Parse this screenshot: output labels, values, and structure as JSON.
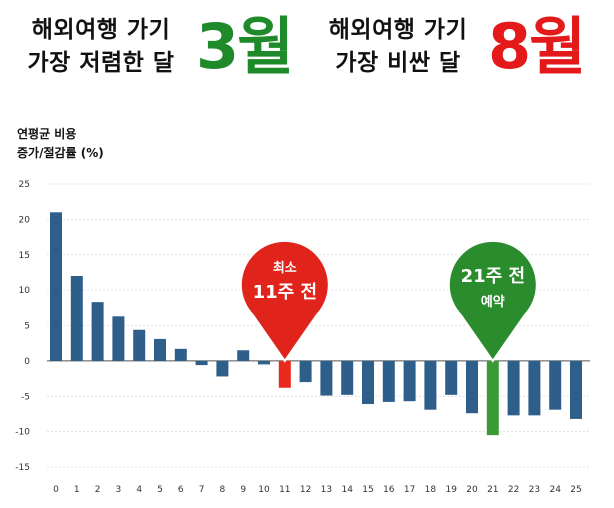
{
  "header": {
    "left_line1": "해외여행 가기",
    "left_line2": "가장 저렴한 달",
    "left_month": "3월",
    "right_line1": "해외여행 가기",
    "right_line2": "가장 비싼 달",
    "right_month": "8월"
  },
  "colors": {
    "green": "#1e8a2a",
    "red": "#e41a1a",
    "bar_blue": "#2e5f8a",
    "bar_red": "#e8291c",
    "bar_green": "#3a9a35",
    "grid": "#d8d8d8"
  },
  "chart_data": {
    "type": "bar",
    "ylabel_line1": "연평균 비용",
    "ylabel_line2": "증가/절감률 (%)",
    "categories": [
      "0",
      "1",
      "2",
      "3",
      "4",
      "5",
      "6",
      "7",
      "8",
      "9",
      "10",
      "11",
      "12",
      "13",
      "14",
      "15",
      "16",
      "17",
      "18",
      "19",
      "20",
      "21",
      "22",
      "23",
      "24",
      "25"
    ],
    "values": [
      21,
      12,
      8.3,
      6.3,
      4.4,
      3.1,
      1.7,
      -0.6,
      -2.2,
      1.5,
      -0.5,
      -3.8,
      -3.0,
      -4.9,
      -4.8,
      -6.1,
      -5.8,
      -5.7,
      -6.9,
      -4.8,
      -7.4,
      -10.5,
      -7.7,
      -7.7,
      -6.9,
      -8.2
    ],
    "highlight": {
      "11": "red",
      "21": "green"
    },
    "ylim": [
      -15,
      25
    ],
    "yticks": [
      25,
      20,
      15,
      10,
      5,
      0,
      -5,
      -10,
      -15
    ],
    "grid": true,
    "annotations": [
      {
        "category": "11",
        "line1": "최소",
        "line2": "11주 전",
        "color": "red"
      },
      {
        "category": "21",
        "line1": "21주 전",
        "line2": "예약",
        "color": "green"
      }
    ]
  }
}
